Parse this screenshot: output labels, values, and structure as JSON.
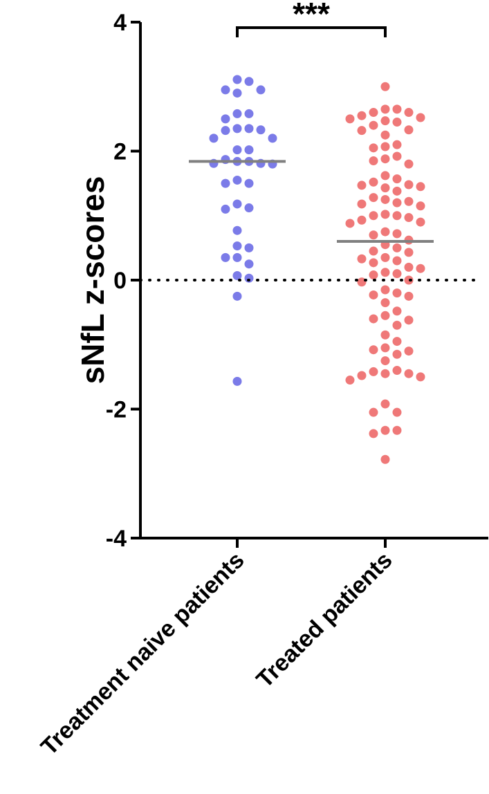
{
  "chart_data": {
    "type": "scatter",
    "chart_kind": "dot-plot",
    "ylabel": "sNfL z-scores",
    "ylim": [
      -4,
      4
    ],
    "yticks": [
      "4",
      "2",
      "0",
      "-2",
      "-4"
    ],
    "reference_line": {
      "y": 0,
      "style": "dotted"
    },
    "significance": {
      "between": [
        "Treatment naive patients",
        "Treated patients"
      ],
      "label": "***"
    },
    "categories": [
      "Treatment naive patients",
      "Treated patients"
    ],
    "series": [
      {
        "category": "Treatment naive patients",
        "color": "#7b7be8",
        "median": 1.84,
        "values": [
          3.11,
          3.08,
          2.95,
          2.95,
          2.9,
          2.58,
          2.58,
          2.5,
          2.35,
          2.35,
          2.33,
          2.32,
          2.2,
          2.2,
          2.02,
          2.02,
          1.87,
          1.84,
          1.84,
          1.81,
          1.81,
          1.8,
          1.55,
          1.5,
          1.5,
          1.18,
          1.12,
          1.1,
          0.77,
          0.53,
          0.5,
          0.35,
          0.35,
          0.25,
          0.07,
          0.03,
          -0.25,
          -1.57
        ]
      },
      {
        "category": "Treated patients",
        "color": "#ef7878",
        "median": 0.6,
        "values": [
          3.0,
          2.65,
          2.65,
          2.6,
          2.6,
          2.55,
          2.52,
          2.5,
          2.47,
          2.45,
          2.4,
          2.33,
          2.32,
          2.25,
          2.1,
          2.07,
          2.05,
          1.92,
          1.88,
          1.85,
          1.8,
          1.62,
          1.57,
          1.52,
          1.48,
          1.47,
          1.45,
          1.43,
          1.38,
          1.28,
          1.25,
          1.22,
          1.2,
          1.18,
          1.15,
          1.02,
          1.0,
          1.0,
          0.97,
          0.93,
          0.9,
          0.88,
          0.75,
          0.72,
          0.7,
          0.62,
          0.55,
          0.5,
          0.45,
          0.43,
          0.35,
          0.33,
          0.3,
          0.27,
          0.2,
          0.18,
          0.12,
          0.1,
          0.08,
          0.0,
          -0.03,
          -0.15,
          -0.2,
          -0.23,
          -0.25,
          -0.35,
          -0.48,
          -0.55,
          -0.6,
          -0.62,
          -0.7,
          -0.85,
          -0.95,
          -1.05,
          -1.08,
          -1.1,
          -1.15,
          -1.25,
          -1.4,
          -1.42,
          -1.45,
          -1.45,
          -1.48,
          -1.5,
          -1.55,
          -1.92,
          -2.05,
          -2.05,
          -2.33,
          -2.33,
          -2.38,
          -2.78
        ]
      }
    ]
  }
}
